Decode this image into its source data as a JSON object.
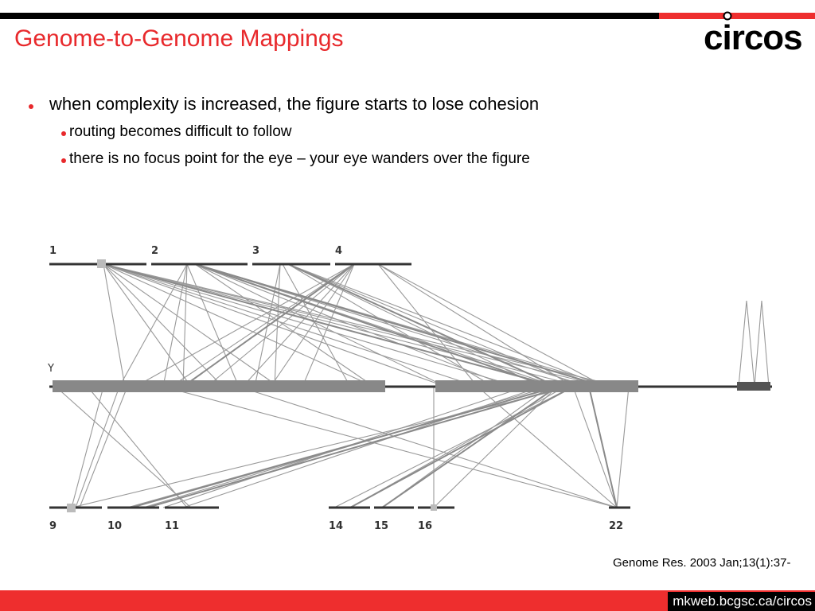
{
  "slide": {
    "title": "Genome-to-Genome Mappings",
    "logo_text": "circos",
    "bullets": [
      {
        "level": 1,
        "text": "when complexity is increased, the figure starts to lose cohesion"
      },
      {
        "level": 2,
        "text": "routing becomes difficult to follow"
      },
      {
        "level": 2,
        "text": "there is no focus point for the eye – your eye wanders over the figure"
      }
    ],
    "citation": "Genome Res. 2003 Jan;13(1):37-",
    "footer_url": "mkweb.bcgsc.ca/circos"
  },
  "colors": {
    "accent_red": "#e8292c",
    "bar_red": "#ee2e2e",
    "bar_black": "#000000",
    "figure_line": "#999999",
    "figure_bar": "#888888",
    "figure_axis": "#333333"
  },
  "figure": {
    "top_labels": [
      "1",
      "2",
      "3",
      "4"
    ],
    "middle_label": "Y",
    "bottom_labels": [
      "9",
      "10",
      "11",
      "14",
      "15",
      "16",
      "22"
    ]
  }
}
